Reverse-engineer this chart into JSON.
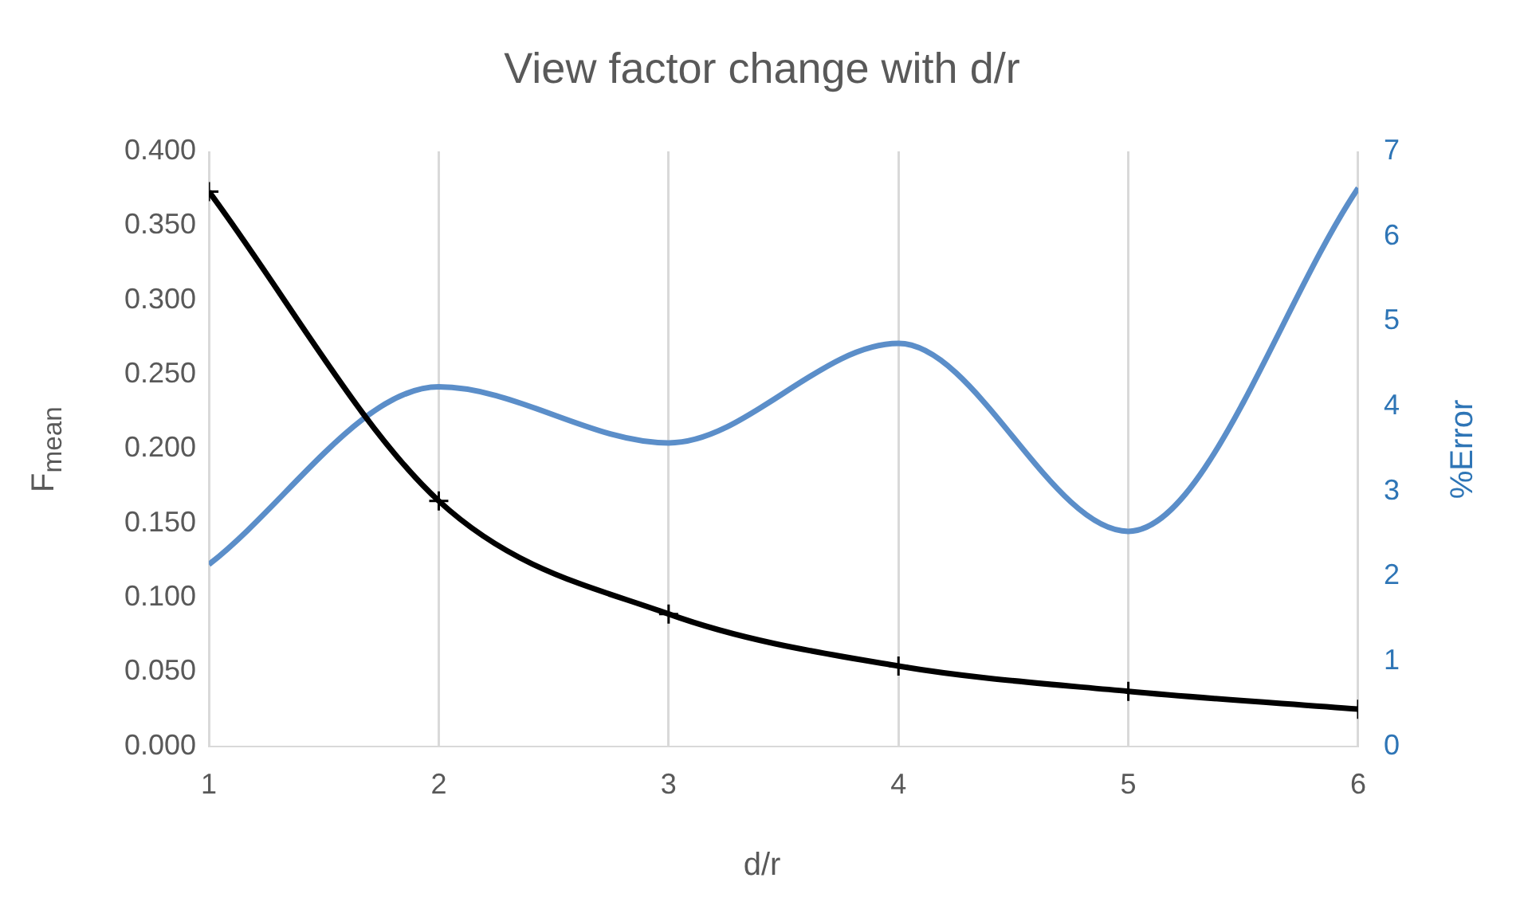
{
  "chart_data": {
    "type": "line",
    "title": "View factor change with d/r",
    "xlabel": "d/r",
    "ylabel": "F$_{mean}$",
    "y2label": "%Error",
    "x": [
      1,
      2,
      3,
      4,
      5,
      6
    ],
    "series": [
      {
        "values": [
          0.373,
          0.165,
          0.089,
          0.054,
          0.037,
          0.025
        ],
        "color": "#000000",
        "marker": "cross"
      },
      {
        "values": [
          2.14,
          4.23,
          3.57,
          4.74,
          2.53,
          6.57
        ],
        "color": "#5b8ec9",
        "axis": "y2",
        "marker": "none"
      }
    ],
    "xlim": [
      1,
      6
    ],
    "xticks": [
      1,
      2,
      3,
      4,
      5,
      6
    ],
    "ylim": [
      0,
      0.4
    ],
    "yticks": [
      {
        "value": 0,
        "label": "0.000"
      },
      {
        "value": 0.05,
        "label": "0.050"
      },
      {
        "value": 0.1,
        "label": "0.100"
      },
      {
        "value": 0.15,
        "label": "0.150"
      },
      {
        "value": 0.2,
        "label": "0.200"
      },
      {
        "value": 0.25,
        "label": "0.250"
      },
      {
        "value": 0.3,
        "label": "0.300"
      },
      {
        "value": 0.35,
        "label": "0.350"
      },
      {
        "value": 0.4,
        "label": "0.400"
      }
    ],
    "y2lim": [
      0,
      7
    ],
    "y2ticks": [
      0,
      1,
      2,
      3,
      4,
      5,
      6,
      7
    ],
    "grid": "x",
    "legend": false,
    "line_style": "solid"
  }
}
